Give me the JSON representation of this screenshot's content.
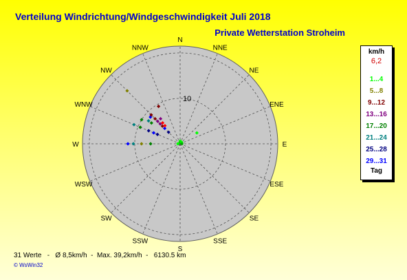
{
  "header": {
    "title": "Verteilung Windrichtung/Windgeschwindigkeit  Juli 2018",
    "subtitle": "Private Wetterstation Stroheim"
  },
  "legend": {
    "unit": "km/h",
    "max_value": "6,2",
    "ranges": [
      {
        "label": "1...4",
        "color": "#00ff00"
      },
      {
        "label": "5...8",
        "color": "#808000"
      },
      {
        "label": "9...12",
        "color": "#800000"
      },
      {
        "label": "13...16",
        "color": "#800080"
      },
      {
        "label": "17...20",
        "color": "#008000"
      },
      {
        "label": "21...24",
        "color": "#008080"
      },
      {
        "label": "25...28",
        "color": "#000080"
      },
      {
        "label": "29...31",
        "color": "#0000ff"
      }
    ],
    "day_label": "Tag"
  },
  "footer": {
    "summary": "31 Werte   -   Ø 8,5km/h  -  Max. 39,2km/h  -   6130.5 km"
  },
  "credit": "© WsWin32",
  "chart_data": {
    "type": "scatter",
    "subtype": "polar wind rose",
    "title": "Verteilung Windrichtung/Windgeschwindigkeit  Juli 2018",
    "directions": [
      "N",
      "NNE",
      "NE",
      "ENE",
      "E",
      "ESE",
      "SE",
      "SSE",
      "S",
      "SSW",
      "SW",
      "WSW",
      "W",
      "WNW",
      "NW",
      "NNW"
    ],
    "ring_label": "10",
    "ring_value": 10,
    "r_max": 21.5,
    "points": [
      {
        "angle": 0,
        "r": 0.6,
        "color": "#00ff00"
      },
      {
        "angle": 0,
        "r": 0.3,
        "color": "#00cc00"
      },
      {
        "angle": 45,
        "r": 0.5,
        "color": "#00ff00"
      },
      {
        "angle": 57,
        "r": 4.4,
        "color": "#00ff00"
      },
      {
        "angle": 90,
        "r": 0.4,
        "color": "#00aa00"
      },
      {
        "angle": 270,
        "r": 0.5,
        "color": "#00ff00"
      },
      {
        "angle": 270,
        "r": 6.5,
        "color": "#008000"
      },
      {
        "angle": 270,
        "r": 8.5,
        "color": "#808000"
      },
      {
        "angle": 270,
        "r": 10.3,
        "color": "#008080"
      },
      {
        "angle": 270,
        "r": 11.5,
        "color": "#0000ff"
      },
      {
        "angle": 292.5,
        "r": 5.4,
        "color": "#000080"
      },
      {
        "angle": 292.5,
        "r": 6.3,
        "color": "#0000ff"
      },
      {
        "angle": 292.5,
        "r": 9.5,
        "color": "#008000"
      },
      {
        "angle": 292.5,
        "r": 11.0,
        "color": "#008080"
      },
      {
        "angle": 302,
        "r": 10.0,
        "color": "#008000"
      },
      {
        "angle": 306,
        "r": 7.8,
        "color": "#008000"
      },
      {
        "angle": 306,
        "r": 8.6,
        "color": "#008080"
      },
      {
        "angle": 312,
        "r": 8.8,
        "color": "#0000ff"
      },
      {
        "angle": 315,
        "r": 3.6,
        "color": "#000080"
      },
      {
        "angle": 315,
        "r": 4.8,
        "color": "#0000ff"
      },
      {
        "angle": 315,
        "r": 5.5,
        "color": "#800000"
      },
      {
        "angle": 315,
        "r": 6.2,
        "color": "#800080"
      },
      {
        "angle": 315,
        "r": 7.0,
        "color": "#800080"
      },
      {
        "angle": 315,
        "r": 7.8,
        "color": "#800000"
      },
      {
        "angle": 315,
        "r": 9.0,
        "color": "#800000"
      },
      {
        "angle": 315,
        "r": 16.5,
        "color": "#808000"
      },
      {
        "angle": 320,
        "r": 5.2,
        "color": "#ff0000"
      },
      {
        "angle": 320,
        "r": 6.0,
        "color": "#ff0000"
      },
      {
        "angle": 322,
        "r": 7.0,
        "color": "#800080"
      },
      {
        "angle": 330,
        "r": 9.5,
        "color": "#800000"
      },
      {
        "angle": 292.5,
        "r": 7.5,
        "color": "#000080"
      }
    ]
  }
}
